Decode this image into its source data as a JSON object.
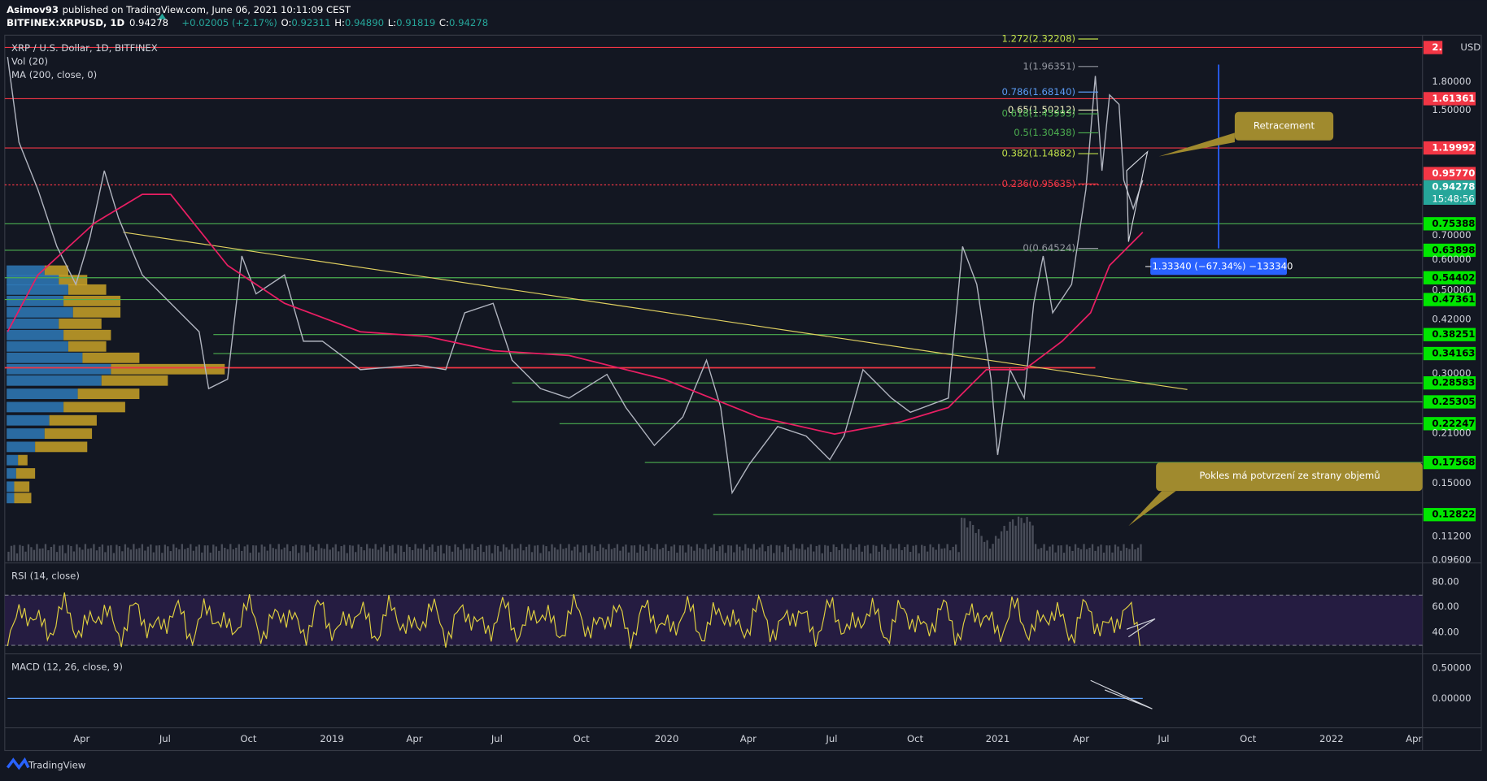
{
  "header": {
    "author": "Asimov93",
    "published": "published on TradingView.com, June 06, 2021 10:11:09 CEST",
    "symbol": "BITFINEX:XRPUSD, 1D",
    "last": "0.94278",
    "change": "+0.02005 (+2.17%)",
    "o_label": "O:",
    "o": "0.92311",
    "h_label": "H:",
    "h": "0.94890",
    "l_label": "L:",
    "l": "0.91819",
    "c_label": "C:",
    "c": "0.94278"
  },
  "legend": [
    "XRP / U.S. Dollar, 1D, BITFINEX",
    "Vol (20)",
    "MA (200, close, 0)"
  ],
  "currency": "USD",
  "price_axis": [
    "1.80000",
    "1.50000",
    "0.70000",
    "0.60000",
    "0.50000",
    "0.42000",
    "0.30000",
    "0.21000",
    "0.15000",
    "0.11200",
    "0.09600"
  ],
  "price_tags": [
    {
      "label": "2.",
      "color": "#f23645"
    },
    {
      "label": "1.61361",
      "color": "#f23645"
    },
    {
      "label": "1.19992",
      "color": "#f23645"
    },
    {
      "label": "0.95770",
      "color": "#f23645"
    },
    {
      "label": "0.94278",
      "color": "#26a69a"
    },
    {
      "label": "0.75388",
      "color": "#00e600"
    },
    {
      "label": "0.63898",
      "color": "#00e600"
    },
    {
      "label": "0.54402",
      "color": "#00e600"
    },
    {
      "label": "0.47361",
      "color": "#00e600"
    },
    {
      "label": "0.38251",
      "color": "#00e600"
    },
    {
      "label": "0.34163",
      "color": "#00e600"
    },
    {
      "label": "0.28583",
      "color": "#00e600"
    },
    {
      "label": "0.25305",
      "color": "#00e600"
    },
    {
      "label": "0.22247",
      "color": "#00e600"
    },
    {
      "label": "0.17568",
      "color": "#00e600"
    },
    {
      "label": "0.12822",
      "color": "#00e600"
    }
  ],
  "countdown": "15:48:56",
  "fib_levels": [
    {
      "label": "1.272(2.32208)",
      "color": "#c0e04a"
    },
    {
      "label": "1(1.96351)",
      "color": "#9598a1"
    },
    {
      "label": "0.786(1.68140)",
      "color": "#5b9cf6"
    },
    {
      "label": "0.65(1.50212)",
      "color": "#f0f0c0"
    },
    {
      "label": "0.618(1.45993)",
      "color": "#4caf50"
    },
    {
      "label": "0.5(1.30438)",
      "color": "#4caf50"
    },
    {
      "label": "0.382(1.14882)",
      "color": "#c0e04a"
    },
    {
      "label": "0.236(0.95635)",
      "color": "#f23645"
    },
    {
      "label": "0(0.64524)",
      "color": "#9598a1"
    }
  ],
  "annotations": [
    "Retracement",
    "Pokles má potvrzení ze strany objemů"
  ],
  "measure": "−1.33340 (−67.34%) −133340",
  "rsi": {
    "label": "RSI (14, close)",
    "ticks": [
      "80.00",
      "60.00",
      "40.00"
    ]
  },
  "macd": {
    "label": "MACD (12, 26, close, 9)",
    "ticks": [
      "0.50000",
      "0.00000"
    ]
  },
  "time_axis": [
    "Apr",
    "Jul",
    "Oct",
    "2019",
    "Apr",
    "Jul",
    "Oct",
    "2020",
    "Apr",
    "Jul",
    "Oct",
    "2021",
    "Apr",
    "Jul",
    "Oct",
    "2022",
    "Apr"
  ],
  "footer": "TradingView"
}
